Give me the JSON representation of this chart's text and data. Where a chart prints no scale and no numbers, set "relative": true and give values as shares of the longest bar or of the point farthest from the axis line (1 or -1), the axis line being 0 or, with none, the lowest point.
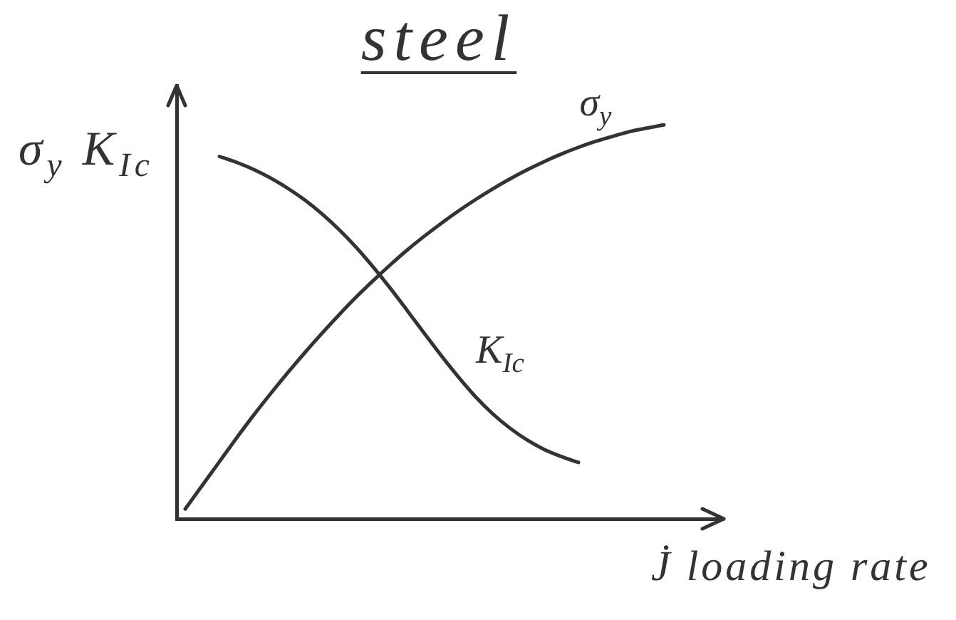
{
  "chart_data": {
    "type": "line",
    "title": "steel",
    "xlabel": "J̇ loading rate",
    "ylabel": "σ$_{y}$ K$_{Ic}$",
    "relative": true,
    "categories": [
      null,
      null,
      null,
      null,
      null,
      null,
      null,
      null,
      null,
      null,
      null,
      null,
      null,
      null,
      null,
      null,
      null,
      null,
      null,
      null,
      null,
      null,
      null,
      null,
      null,
      null,
      null,
      null,
      null,
      null,
      null,
      null
    ],
    "series": [
      {
        "name": "σ$_{y}$",
        "color": "#333333",
        "values": [
          0.025,
          0.085,
          0.145,
          0.205,
          0.263,
          0.318,
          0.371,
          0.422,
          0.471,
          0.518,
          0.563,
          0.605,
          0.645,
          0.683,
          0.718,
          0.751,
          0.782,
          0.811,
          0.838,
          0.863,
          0.886,
          0.907,
          0.926,
          0.943,
          0.958,
          0.971,
          0.983,
          0.992,
          1,
          null,
          null,
          null
        ]
      },
      {
        "name": "K$_{Ic}$",
        "color": "#333333",
        "values": [
          null,
          null,
          0.92,
          0.905,
          0.887,
          0.865,
          0.839,
          0.809,
          0.774,
          0.734,
          0.689,
          0.639,
          0.585,
          0.528,
          0.47,
          0.413,
          0.359,
          0.309,
          0.266,
          0.23,
          0.2,
          0.176,
          0.158,
          0.143,
          null,
          null,
          null,
          null,
          null,
          null,
          null,
          null
        ]
      }
    ]
  }
}
